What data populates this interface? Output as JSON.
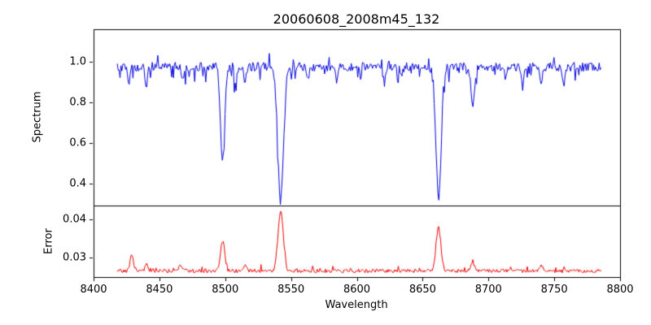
{
  "chart_data": {
    "type": "line",
    "title": "20060608_2008m45_132",
    "xlabel": "Wavelength",
    "xlim": [
      8400,
      8800
    ],
    "x_ticks": [
      8400,
      8450,
      8500,
      8550,
      8600,
      8650,
      8700,
      8750,
      8800
    ],
    "x_tick_labels": [
      "8400",
      "8450",
      "8500",
      "8550",
      "8600",
      "8650",
      "8700",
      "8750",
      "8800"
    ],
    "x_data_range": [
      8418,
      8786
    ],
    "x_step": 0.7,
    "seed": 20060608,
    "grid": false,
    "legend": "none",
    "subplots": [
      {
        "name": "spectrum",
        "ylabel": "Spectrum",
        "ylim": [
          0.29,
          1.16
        ],
        "y_ticks": [
          0.4,
          0.6,
          0.8,
          1.0
        ],
        "y_tick_labels": [
          "0.4",
          "0.6",
          "0.8",
          "1.0"
        ],
        "color": "#0000dd",
        "continuum": 0.975,
        "noise_amplitude": 0.022,
        "down_spike_probability": 0.09,
        "down_spike_max_depth": 0.08,
        "up_spike_probability": 0.05,
        "up_spike_max_height": 0.05,
        "absorption_lines": [
          {
            "center": 8427,
            "depth": 0.07,
            "width": 1.0
          },
          {
            "center": 8440,
            "depth": 0.09,
            "width": 1.0
          },
          {
            "center": 8468,
            "depth": 0.07,
            "width": 1.0
          },
          {
            "center": 8498.0,
            "depth": 0.45,
            "width": 1.6
          },
          {
            "center": 8508,
            "depth": 0.07,
            "width": 0.9
          },
          {
            "center": 8515,
            "depth": 0.09,
            "width": 0.9
          },
          {
            "center": 8542.1,
            "depth": 0.64,
            "width": 2.2
          },
          {
            "center": 8563,
            "depth": 0.06,
            "width": 0.9
          },
          {
            "center": 8585,
            "depth": 0.07,
            "width": 0.9
          },
          {
            "center": 8621,
            "depth": 0.08,
            "width": 1.0
          },
          {
            "center": 8634,
            "depth": 0.06,
            "width": 0.9
          },
          {
            "center": 8662.1,
            "depth": 0.64,
            "width": 2.0
          },
          {
            "center": 8688,
            "depth": 0.21,
            "width": 1.3
          },
          {
            "center": 8713,
            "depth": 0.06,
            "width": 0.9
          },
          {
            "center": 8726,
            "depth": 0.08,
            "width": 0.9
          },
          {
            "center": 8740,
            "depth": 0.09,
            "width": 1.0
          },
          {
            "center": 8757,
            "depth": 0.07,
            "width": 0.9
          }
        ]
      },
      {
        "name": "error",
        "ylabel": "Error",
        "ylim": [
          0.0249,
          0.0436
        ],
        "y_ticks": [
          0.03,
          0.04
        ],
        "y_tick_labels": [
          "0.03",
          "0.04"
        ],
        "color": "#ee0000",
        "baseline": 0.0265,
        "noise_amplitude": 0.0005,
        "up_spike_probability": 0.08,
        "up_spike_max_height": 0.0015,
        "peaks": [
          {
            "center": 8429,
            "height": 0.0045,
            "width": 1.2
          },
          {
            "center": 8440,
            "height": 0.002,
            "width": 1.0
          },
          {
            "center": 8466,
            "height": 0.002,
            "width": 1.0
          },
          {
            "center": 8498.0,
            "height": 0.008,
            "width": 1.6
          },
          {
            "center": 8515,
            "height": 0.0018,
            "width": 1.0
          },
          {
            "center": 8542.1,
            "height": 0.0158,
            "width": 2.0
          },
          {
            "center": 8662.1,
            "height": 0.0113,
            "width": 1.8
          },
          {
            "center": 8688,
            "height": 0.0025,
            "width": 1.2
          },
          {
            "center": 8740,
            "height": 0.0015,
            "width": 1.0
          }
        ]
      }
    ]
  }
}
